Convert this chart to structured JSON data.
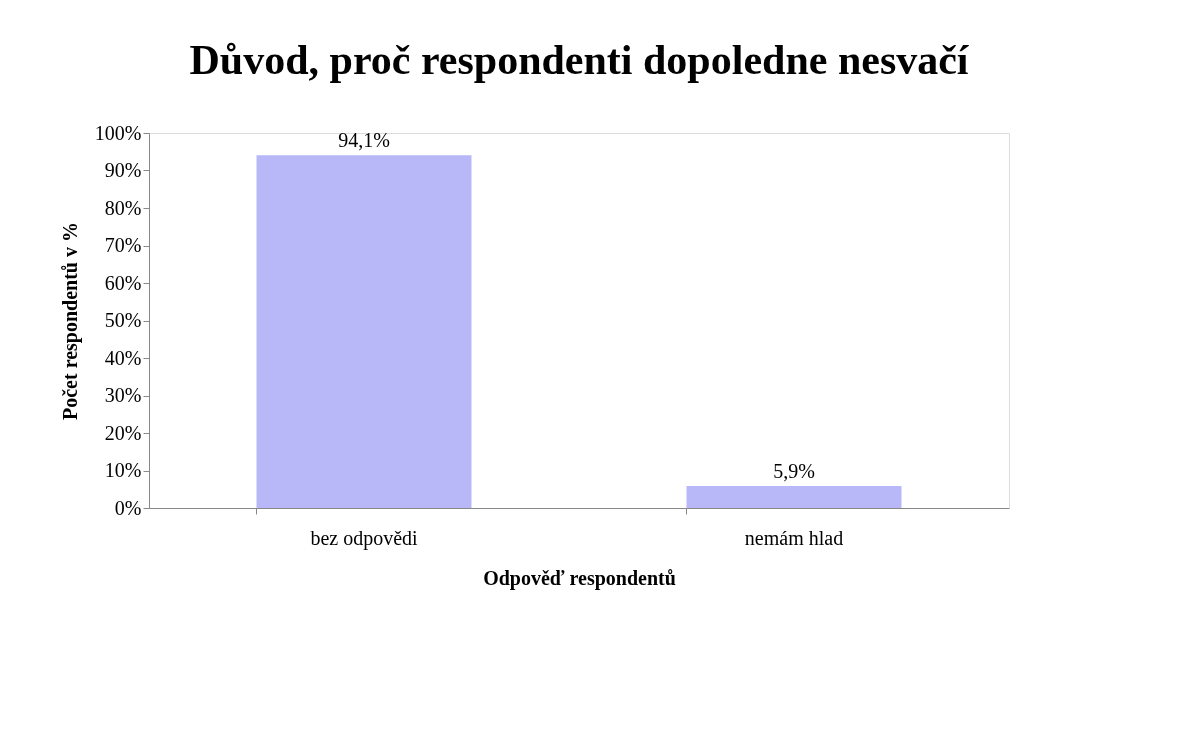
{
  "chart_data": {
    "type": "bar",
    "title": "Důvod, proč respondenti dopoledne nesvačí",
    "xlabel": "Odpověď respondentů",
    "ylabel": "Počet respondentů v %",
    "categories": [
      "bez odpovědi",
      "nemám hlad"
    ],
    "values": [
      94.1,
      5.9
    ],
    "color": "#b8b8f8",
    "value_labels": [
      "94,1%",
      "5,9%"
    ],
    "ylim": [
      0,
      100
    ],
    "yticks": [
      {
        "value": 0,
        "label": "0%"
      },
      {
        "value": 10,
        "label": "10%"
      },
      {
        "value": 20,
        "label": "20%"
      },
      {
        "value": 30,
        "label": "30%"
      },
      {
        "value": 40,
        "label": "40%"
      },
      {
        "value": 50,
        "label": "50%"
      },
      {
        "value": 60,
        "label": "60%"
      },
      {
        "value": 70,
        "label": "70%"
      },
      {
        "value": 80,
        "label": "80%"
      },
      {
        "value": 90,
        "label": "90%"
      },
      {
        "value": 100,
        "label": "100%"
      }
    ],
    "grid": false
  }
}
